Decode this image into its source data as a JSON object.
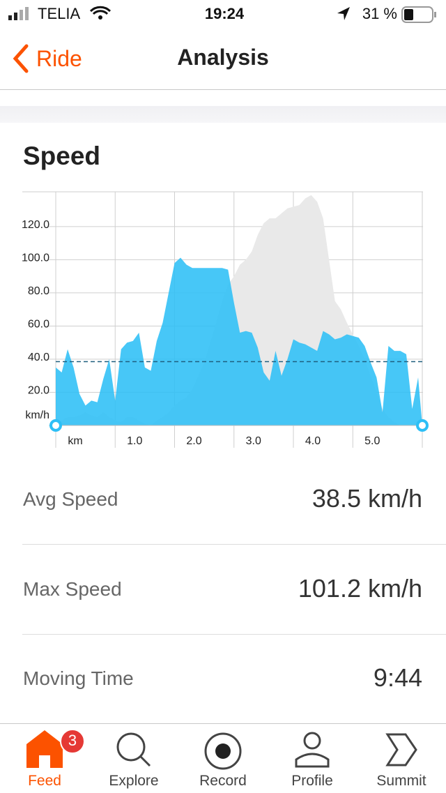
{
  "status_bar": {
    "carrier": "TELIA",
    "time": "19:24",
    "battery": "31 %"
  },
  "nav": {
    "back": "Ride",
    "title": "Analysis"
  },
  "card": {
    "title": "Speed"
  },
  "chart_data": {
    "type": "area",
    "x": [
      0,
      0.1,
      0.2,
      0.3,
      0.4,
      0.5,
      0.6,
      0.7,
      0.8,
      0.9,
      1.0,
      1.1,
      1.2,
      1.3,
      1.4,
      1.5,
      1.6,
      1.7,
      1.8,
      1.9,
      2.0,
      2.1,
      2.2,
      2.3,
      2.4,
      2.5,
      2.6,
      2.7,
      2.8,
      2.9,
      3.0,
      3.1,
      3.2,
      3.3,
      3.4,
      3.5,
      3.6,
      3.7,
      3.8,
      3.9,
      4.0,
      4.1,
      4.2,
      4.3,
      4.4,
      4.5,
      4.6,
      4.7,
      4.8,
      4.9,
      5.0,
      5.1,
      5.2,
      5.3,
      5.4,
      5.5,
      5.6,
      5.7,
      5.8,
      5.9,
      6.0,
      6.1,
      6.17
    ],
    "series": [
      {
        "color": "#e9e9e9",
        "values": [
          2,
          3,
          5,
          5,
          6,
          8,
          6,
          5,
          8,
          5,
          3,
          2,
          5,
          5,
          3,
          1,
          0,
          3,
          5,
          8,
          12,
          15,
          17,
          22,
          30,
          38,
          50,
          62,
          75,
          85,
          90,
          97,
          100,
          105,
          115,
          122,
          125,
          125,
          128,
          131,
          132,
          133,
          137,
          139,
          135,
          125,
          100,
          75,
          70,
          62,
          55,
          48,
          40,
          30,
          20,
          10,
          5,
          2,
          0,
          0,
          0,
          0,
          0
        ]
      },
      {
        "color": "#2dbff6",
        "values": [
          35,
          32,
          46,
          35,
          19,
          12,
          15,
          14,
          28,
          40,
          15,
          46,
          50,
          51,
          56,
          35,
          33,
          51,
          62,
          80,
          98,
          101.2,
          97,
          95,
          95,
          95,
          95,
          95,
          95,
          94,
          74,
          56,
          57,
          56,
          47,
          32,
          27,
          45,
          30,
          40,
          52,
          50,
          49,
          47,
          45,
          57,
          55,
          52,
          53,
          55,
          54,
          53,
          48,
          38,
          29,
          8,
          48,
          45,
          45,
          43,
          10,
          29,
          0
        ]
      }
    ],
    "average": 38.5,
    "average_color": "#1f5f7f",
    "xlim": [
      0,
      6.17
    ],
    "ylim": [
      0,
      141
    ],
    "xticks": [
      {
        "value": 0,
        "label": "km"
      },
      {
        "value": 1,
        "label": "1.0"
      },
      {
        "value": 2,
        "label": "2.0"
      },
      {
        "value": 3,
        "label": "3.0"
      },
      {
        "value": 4,
        "label": "4.0"
      },
      {
        "value": 5,
        "label": "5.0"
      }
    ],
    "yticks": [
      {
        "value": 0,
        "label": "km/h"
      },
      {
        "value": 20,
        "label": "20.0"
      },
      {
        "value": 40,
        "label": "40.0"
      },
      {
        "value": 60,
        "label": "60.0"
      },
      {
        "value": 80,
        "label": "80.0"
      },
      {
        "value": 100,
        "label": "100.0"
      },
      {
        "value": 120,
        "label": "120.0"
      }
    ],
    "grid": true
  },
  "stats": [
    {
      "label": "Avg Speed",
      "value": "38.5 km/h"
    },
    {
      "label": "Max Speed",
      "value": "101.2 km/h"
    },
    {
      "label": "Moving Time",
      "value": "9:44"
    }
  ],
  "tab_bar": [
    {
      "label": "Feed",
      "badge": 3
    },
    {
      "label": "Explore"
    },
    {
      "label": "Record"
    },
    {
      "label": "Profile"
    },
    {
      "label": "Summit"
    }
  ]
}
